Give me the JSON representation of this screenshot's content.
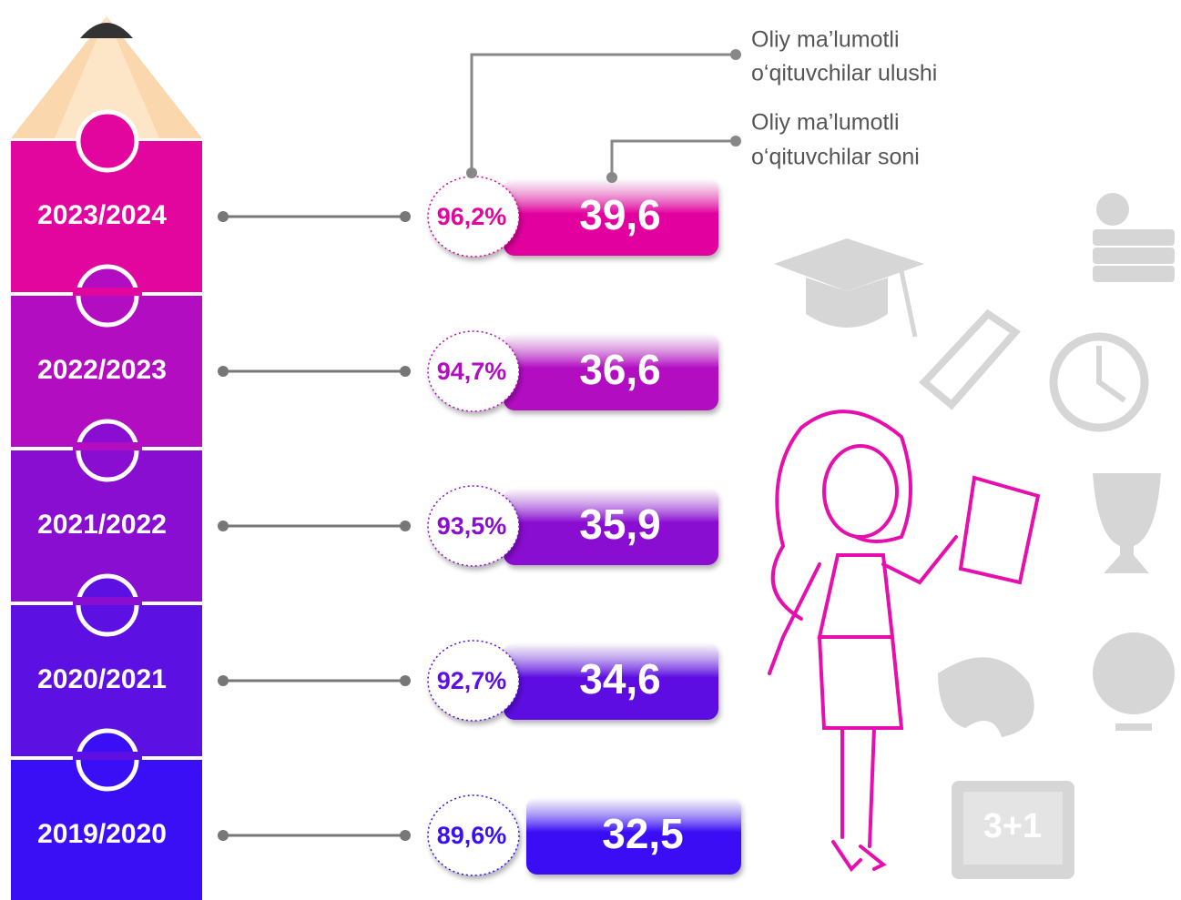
{
  "legend": [
    {
      "lines": [
        "Oliy ma’lumotli",
        "o‘qituvchilar ulushi"
      ]
    },
    {
      "lines": [
        "Oliy ma’lumotli",
        "o‘qituvchilar soni"
      ]
    }
  ],
  "rows": [
    {
      "year": "2023/2024",
      "share": "96,2%",
      "count": "39,6",
      "color": "#e2069f"
    },
    {
      "year": "2022/2023",
      "share": "94,7%",
      "count": "36,6",
      "color": "#b30dc2"
    },
    {
      "year": "2021/2022",
      "share": "93,5%",
      "count": "35,9",
      "color": "#8a0ed2"
    },
    {
      "year": "2020/2021",
      "share": "92,7%",
      "count": "34,6",
      "color": "#5d10e2"
    },
    {
      "year": "2019/2020",
      "share": "89,6%",
      "count": "32,5",
      "color": "#3a0ff5"
    }
  ],
  "board": "3+1"
}
